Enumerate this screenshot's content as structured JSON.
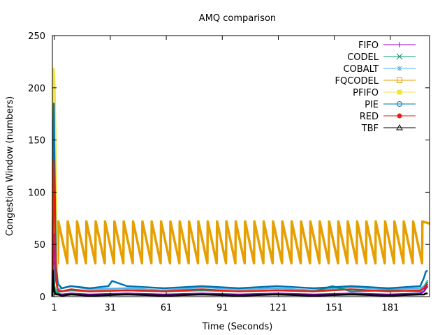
{
  "chart_data": {
    "type": "line",
    "title": "AMQ comparison",
    "xlabel": "Time (Seconds)",
    "ylabel": "Congestion Window (numbers)",
    "xlim": [
      0,
      202
    ],
    "ylim": [
      0,
      250
    ],
    "xticks": [
      1,
      31,
      61,
      91,
      121,
      151,
      181
    ],
    "yticks": [
      0,
      50,
      100,
      150,
      200,
      250
    ],
    "grid": false,
    "legend_position": "top-right",
    "series": [
      {
        "name": "FIFO",
        "color": "#9400d3",
        "marker": "plus",
        "x": [
          0,
          0.5,
          1,
          2,
          5,
          10,
          20,
          40,
          60,
          80,
          100,
          120,
          140,
          160,
          180,
          197,
          199,
          200,
          201
        ],
        "y": [
          0,
          60,
          8,
          3,
          2,
          3,
          2,
          3,
          2,
          3,
          2,
          3,
          2,
          3,
          2,
          3,
          5,
          8,
          10
        ]
      },
      {
        "name": "CODEL",
        "color": "#009e73",
        "marker": "x",
        "x": [
          0,
          0.5,
          1,
          2,
          5,
          10,
          20,
          40,
          60,
          80,
          100,
          120,
          140,
          150,
          160,
          180,
          197,
          199,
          200,
          201
        ],
        "y": [
          0,
          30,
          8,
          4,
          5,
          6,
          5,
          6,
          5,
          6,
          5,
          6,
          5,
          10,
          5,
          6,
          5,
          8,
          12,
          14
        ]
      },
      {
        "name": "COBALT",
        "color": "#56b4e9",
        "marker": "star",
        "x": [
          0,
          0.5,
          1,
          2,
          5,
          10,
          20,
          40,
          60,
          80,
          100,
          120,
          140,
          160,
          180,
          197,
          199,
          200,
          201
        ],
        "y": [
          0,
          20,
          10,
          6,
          8,
          10,
          7,
          8,
          6,
          9,
          7,
          8,
          6,
          9,
          7,
          8,
          10,
          12,
          16
        ]
      },
      {
        "name": "FQCODEL",
        "color": "#e69f00",
        "marker": "square",
        "x": [
          1,
          3,
          3.2,
          8,
          8.2,
          13,
          13.2,
          18,
          18.2,
          23,
          23.2,
          28,
          28.2,
          33,
          33.2,
          38,
          38.2,
          43,
          43.2,
          48,
          48.2,
          53,
          53.2,
          58,
          58.2,
          63,
          63.2,
          68,
          68.2,
          73,
          73.2,
          78,
          78.2,
          83,
          83.2,
          88,
          88.2,
          93,
          93.2,
          98,
          98.2,
          103,
          103.2,
          108,
          108.2,
          113,
          113.2,
          118,
          118.2,
          123,
          123.2,
          128,
          128.2,
          133,
          133.2,
          138,
          138.2,
          143,
          143.2,
          148,
          148.2,
          153,
          153.2,
          158,
          158.2,
          163,
          163.2,
          168,
          168.2,
          173,
          173.2,
          178,
          178.2,
          183,
          183.2,
          188,
          188.2,
          193,
          193.2,
          198,
          198.2,
          202
        ],
        "y": [
          32,
          32,
          72,
          32,
          72,
          32,
          72,
          32,
          72,
          32,
          72,
          32,
          72,
          32,
          72,
          32,
          72,
          32,
          72,
          32,
          72,
          32,
          72,
          32,
          72,
          32,
          72,
          32,
          72,
          32,
          72,
          32,
          72,
          32,
          72,
          32,
          72,
          32,
          72,
          32,
          72,
          32,
          72,
          32,
          72,
          32,
          72,
          32,
          72,
          32,
          72,
          32,
          72,
          32,
          72,
          32,
          72,
          32,
          72,
          32,
          72,
          32,
          72,
          32,
          72,
          32,
          72,
          32,
          72,
          32,
          72,
          32,
          72,
          32,
          72,
          32,
          72,
          32,
          72,
          32,
          72,
          70
        ]
      },
      {
        "name": "PFIFO",
        "color": "#f0e442",
        "marker": "filled-square",
        "x": [
          0,
          0.3,
          0.6,
          1,
          1.5,
          2,
          2.5
        ],
        "y": [
          0,
          100,
          218,
          200,
          150,
          60,
          8
        ]
      },
      {
        "name": "PIE",
        "color": "#0072b2",
        "marker": "circle",
        "x": [
          0,
          0.4,
          0.8,
          1,
          1.5,
          2,
          3,
          5,
          10,
          20,
          30,
          32,
          40,
          60,
          80,
          100,
          120,
          140,
          160,
          180,
          197,
          199,
          200,
          201
        ],
        "y": [
          0,
          120,
          185,
          150,
          80,
          28,
          12,
          8,
          10,
          8,
          10,
          15,
          10,
          8,
          10,
          8,
          10,
          8,
          10,
          8,
          10,
          18,
          24,
          25
        ]
      },
      {
        "name": "RED",
        "color": "#e51e10",
        "marker": "filled-circle",
        "x": [
          0,
          0.3,
          0.6,
          1,
          1.5,
          2,
          3,
          5,
          10,
          20,
          40,
          60,
          80,
          100,
          120,
          140,
          160,
          180,
          197,
          199,
          200,
          201
        ],
        "y": [
          0,
          80,
          130,
          100,
          50,
          15,
          6,
          5,
          7,
          5,
          6,
          5,
          7,
          5,
          6,
          5,
          7,
          5,
          6,
          8,
          10,
          12
        ]
      },
      {
        "name": "TBF",
        "color": "#000000",
        "marker": "triangle",
        "x": [
          0,
          0.3,
          0.6,
          1,
          1.5,
          2,
          3,
          5,
          10,
          20,
          40,
          60,
          80,
          100,
          120,
          140,
          160,
          180,
          197,
          199,
          200,
          201
        ],
        "y": [
          0,
          25,
          12,
          5,
          3,
          2,
          2,
          1,
          2,
          1,
          2,
          1,
          2,
          1,
          2,
          1,
          2,
          1,
          2,
          2,
          3,
          3
        ]
      }
    ]
  }
}
